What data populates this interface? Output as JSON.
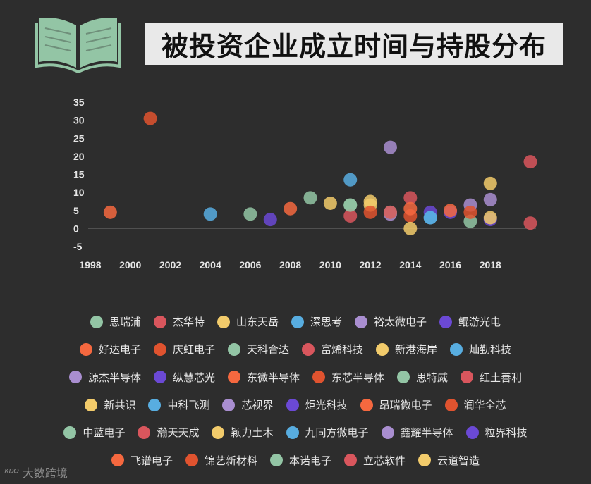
{
  "title": "被投资企业成立时间与持股分布",
  "watermark": "大数跨境",
  "watermark_icon": "dashuju-logo-icon",
  "palette": [
    "#93c5a5",
    "#d9565d",
    "#f2cb6b",
    "#58ade0",
    "#a98ed0",
    "#6b49d5",
    "#f5683f",
    "#e0532f"
  ],
  "chart_data": {
    "type": "scatter",
    "title": "被投资企业成立时间与持股分布",
    "xlabel": "",
    "ylabel": "",
    "xlim": [
      1998,
      2020
    ],
    "ylim": [
      -5,
      35
    ],
    "x_ticks": [
      "1998",
      "2000",
      "2002",
      "2004",
      "2006",
      "2008",
      "2010",
      "2012",
      "2014",
      "2016",
      "2018"
    ],
    "y_ticks": [
      "35",
      "30",
      "25",
      "20",
      "15",
      "10",
      "5",
      "0",
      "-5"
    ],
    "grid": false,
    "legend_position": "bottom",
    "series": [
      {
        "name": "思瑞浦",
        "color": "#93c5a5",
        "points": [
          [
            2006,
            4
          ],
          [
            2011,
            6.5
          ]
        ]
      },
      {
        "name": "杰华特",
        "color": "#d9565d",
        "points": [
          [
            2011,
            3.5
          ]
        ]
      },
      {
        "name": "山东天岳",
        "color": "#f2cb6b",
        "points": [
          [
            2012,
            7.5
          ]
        ]
      },
      {
        "name": "深思考",
        "color": "#58ade0",
        "points": [
          [
            2011,
            13.5
          ]
        ]
      },
      {
        "name": "裕太微电子",
        "color": "#a98ed0",
        "points": [
          [
            2013,
            22.5
          ]
        ]
      },
      {
        "name": "鲲游光电",
        "color": "#6b49d5",
        "points": [
          [
            2007,
            2.5
          ]
        ]
      },
      {
        "name": "好达电子",
        "color": "#f5683f",
        "points": [
          [
            1999,
            4.5
          ]
        ]
      },
      {
        "name": "庆虹电子",
        "color": "#e0532f",
        "points": [
          [
            2001,
            30.5
          ]
        ]
      },
      {
        "name": "天科合达",
        "color": "#93c5a5",
        "points": [
          [
            2009,
            8.5
          ]
        ]
      },
      {
        "name": "富烯科技",
        "color": "#d9565d",
        "points": [
          [
            2014,
            8.5
          ]
        ]
      },
      {
        "name": "新港海岸",
        "color": "#f2cb6b",
        "points": [
          [
            2012,
            6.5
          ]
        ]
      },
      {
        "name": "灿勤科技",
        "color": "#58ade0",
        "points": [
          [
            2004,
            4
          ]
        ]
      },
      {
        "name": "源杰半导体",
        "color": "#a98ed0",
        "points": [
          [
            2018,
            8
          ]
        ]
      },
      {
        "name": "纵慧芯光",
        "color": "#6b49d5",
        "points": [
          [
            2015,
            4.5
          ]
        ]
      },
      {
        "name": "东微半导体",
        "color": "#f5683f",
        "points": [
          [
            2008,
            5.5
          ]
        ]
      },
      {
        "name": "东芯半导体",
        "color": "#e0532f",
        "points": [
          [
            2014,
            3.5
          ]
        ]
      },
      {
        "name": "思特威",
        "color": "#93c5a5",
        "points": [
          [
            2017,
            2
          ]
        ]
      },
      {
        "name": "红土善利",
        "color": "#d9565d",
        "points": [
          [
            2020,
            1.5
          ]
        ]
      },
      {
        "name": "新共识",
        "color": "#f2cb6b",
        "points": [
          [
            2014,
            0
          ]
        ]
      },
      {
        "name": "中科飞测",
        "color": "#58ade0",
        "points": [
          [
            2015,
            3
          ]
        ]
      },
      {
        "name": "芯视界",
        "color": "#a98ed0",
        "points": [
          [
            2013,
            4
          ]
        ]
      },
      {
        "name": "炬光科技",
        "color": "#6b49d5",
        "points": [
          [
            2016,
            4.5
          ]
        ]
      },
      {
        "name": "昂瑞微电子",
        "color": "#f5683f",
        "points": [
          [
            2014,
            5.5
          ]
        ]
      },
      {
        "name": "润华全芯",
        "color": "#e0532f",
        "points": [
          [
            2012,
            4.5
          ]
        ]
      },
      {
        "name": "中蓝电子",
        "color": "#93c5a5",
        "points": [
          [
            2011,
            6.5
          ]
        ]
      },
      {
        "name": "瀚天天成",
        "color": "#d9565d",
        "points": [
          [
            2020,
            18.5
          ]
        ]
      },
      {
        "name": "颖力土木",
        "color": "#f2cb6b",
        "points": [
          [
            2018,
            12.5
          ]
        ]
      },
      {
        "name": "九同方微电子",
        "color": "#58ade0",
        "points": [
          [
            2015,
            3
          ]
        ]
      },
      {
        "name": "鑫耀半导体",
        "color": "#a98ed0",
        "points": [
          [
            2017,
            6.5
          ]
        ]
      },
      {
        "name": "粒界科技",
        "color": "#6b49d5",
        "points": [
          [
            2018,
            2.5
          ]
        ]
      },
      {
        "name": "飞谱电子",
        "color": "#f5683f",
        "points": [
          [
            2016,
            5
          ]
        ]
      },
      {
        "name": "锦艺新材料",
        "color": "#e0532f",
        "points": [
          [
            2017,
            4.5
          ]
        ]
      },
      {
        "name": "本诺电子",
        "color": "#93c5a5",
        "points": [
          [
            2013,
            4.5
          ]
        ]
      },
      {
        "name": "立芯软件",
        "color": "#d9565d",
        "points": [
          [
            2013,
            4.5
          ]
        ]
      },
      {
        "name": "云道智造",
        "color": "#f2cb6b",
        "points": [
          [
            2010,
            7
          ],
          [
            2018,
            3
          ]
        ]
      }
    ],
    "legend_rows": [
      [
        "思瑞浦",
        "杰华特",
        "山东天岳",
        "深思考",
        "裕太微电子",
        "鲲游光电"
      ],
      [
        "好达电子",
        "庆虹电子",
        "天科合达",
        "富烯科技",
        "新港海岸",
        "灿勤科技"
      ],
      [
        "源杰半导体",
        "纵慧芯光",
        "东微半导体",
        "东芯半导体",
        "思特威",
        "红土善利"
      ],
      [
        "新共识",
        "中科飞测",
        "芯视界",
        "炬光科技",
        "昂瑞微电子",
        "润华全芯"
      ],
      [
        "中蓝电子",
        "瀚天天成",
        "颖力土木",
        "九同方微电子",
        "鑫耀半导体",
        "粒界科技"
      ],
      [
        "飞谱电子",
        "锦艺新材料",
        "本诺电子",
        "立芯软件",
        "云道智造"
      ]
    ]
  }
}
